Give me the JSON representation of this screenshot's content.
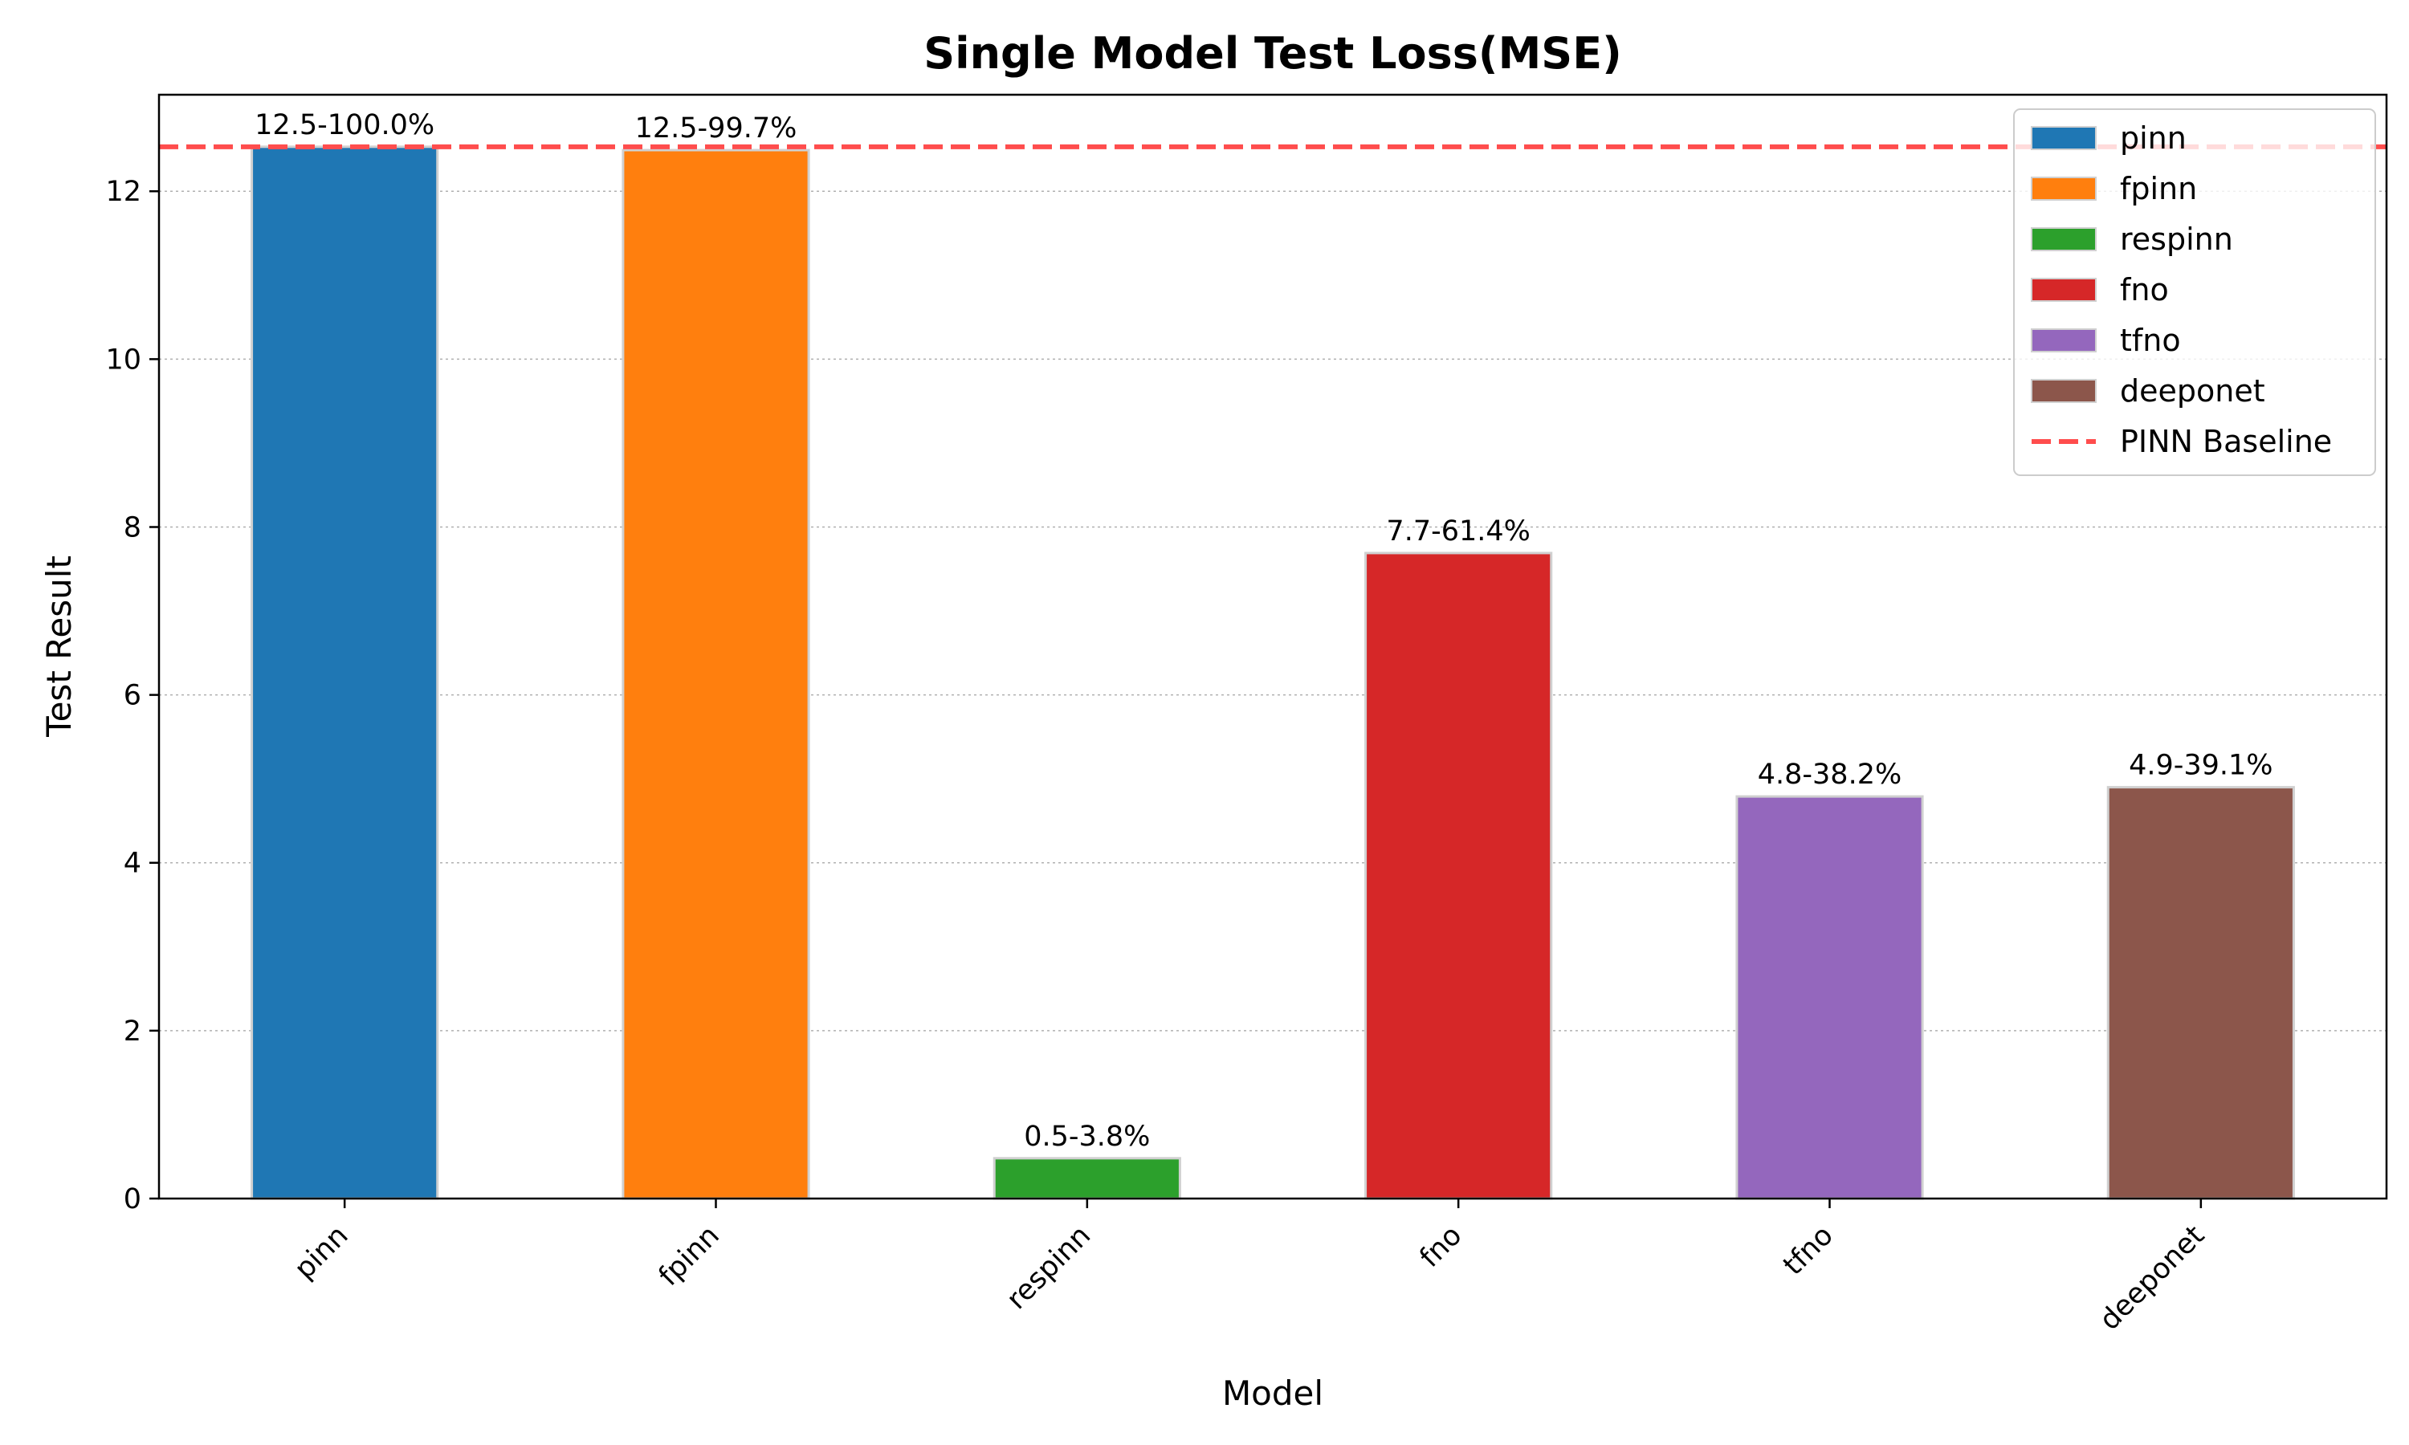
{
  "chart_data": {
    "type": "bar",
    "title": "Single Model Test Loss(MSE)",
    "xlabel": "Model",
    "ylabel": "Test Result",
    "categories": [
      "pinn",
      "fpinn",
      "respinn",
      "fno",
      "tfno",
      "deeponet"
    ],
    "values": [
      12.53,
      12.49,
      0.48,
      7.69,
      4.79,
      4.9
    ],
    "data_labels": [
      "12.5-100.0%",
      "12.5-99.7%",
      "0.5-3.8%",
      "7.7-61.4%",
      "4.8-38.2%",
      "4.9-39.1%"
    ],
    "colors": [
      "#1f77b4",
      "#ff7f0e",
      "#2ca02c",
      "#d62728",
      "#9467bd",
      "#8c564b"
    ],
    "ylim": [
      0,
      13.15
    ],
    "yticks": [
      0,
      2,
      4,
      6,
      8,
      10,
      12
    ],
    "grid": "y-dotted",
    "baseline": {
      "name": "PINN Baseline",
      "value": 12.53,
      "color": "#ff4d4d"
    },
    "legend": {
      "position": "top-right",
      "entries": [
        "pinn",
        "fpinn",
        "respinn",
        "fno",
        "tfno",
        "deeponet",
        "PINN Baseline"
      ]
    }
  }
}
